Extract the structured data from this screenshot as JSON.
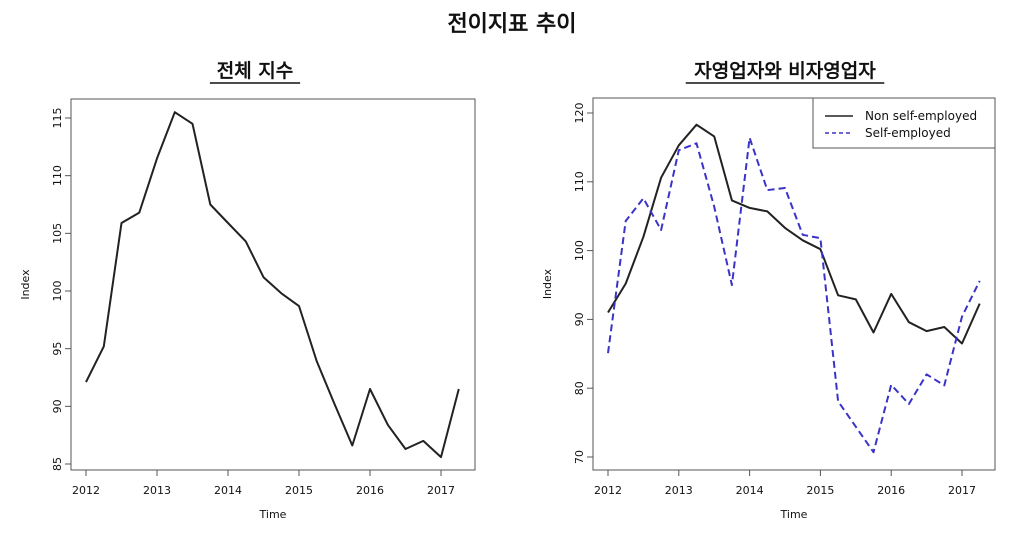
{
  "title": "전이지표 추이",
  "chart_data": [
    {
      "type": "line",
      "title": "전체 지수",
      "xlabel": "Time",
      "ylabel": "Index",
      "xlim": [
        2012,
        2017.25
      ],
      "ylim": [
        85,
        115
      ],
      "xticks": [
        2012,
        2013,
        2014,
        2015,
        2016,
        2017
      ],
      "yticks": [
        85,
        90,
        95,
        100,
        105,
        110,
        115
      ],
      "grid": false,
      "x": [
        2012,
        2012.25,
        2012.5,
        2012.75,
        2013,
        2013.25,
        2013.5,
        2013.75,
        2014,
        2014.25,
        2014.5,
        2014.75,
        2015,
        2015.25,
        2015.5,
        2015.75,
        2016,
        2016.25,
        2016.5,
        2016.75,
        2017,
        2017.25
      ],
      "series": [
        {
          "name": "Index",
          "color": "#222222",
          "dash": false,
          "values": [
            92.1,
            95.2,
            105.9,
            106.8,
            111.5,
            115.5,
            114.5,
            107.5,
            105.9,
            104.3,
            101.2,
            99.8,
            98.7,
            93.9,
            90.2,
            86.6,
            91.5,
            88.4,
            86.3,
            87.0,
            85.6,
            91.5
          ]
        }
      ]
    },
    {
      "type": "line",
      "title": "자영업자와 비자영업자",
      "xlabel": "Time",
      "ylabel": "Index",
      "xlim": [
        2012,
        2017.25
      ],
      "ylim": [
        70,
        120
      ],
      "xticks": [
        2012,
        2013,
        2014,
        2015,
        2016,
        2017
      ],
      "yticks": [
        70,
        80,
        90,
        100,
        110,
        120
      ],
      "grid": false,
      "legend": "top-right",
      "x": [
        2012,
        2012.25,
        2012.5,
        2012.75,
        2013,
        2013.25,
        2013.5,
        2013.75,
        2014,
        2014.25,
        2014.5,
        2014.75,
        2015,
        2015.25,
        2015.5,
        2015.75,
        2016,
        2016.25,
        2016.5,
        2016.75,
        2017,
        2017.25
      ],
      "series": [
        {
          "name": "Non self-employed",
          "color": "#222222",
          "dash": false,
          "values": [
            91.0,
            95.2,
            102.0,
            110.6,
            115.3,
            118.3,
            116.6,
            107.3,
            106.2,
            105.7,
            103.3,
            101.5,
            100.2,
            93.5,
            92.9,
            88.1,
            93.7,
            89.6,
            88.3,
            88.9,
            86.5,
            92.3
          ]
        },
        {
          "name": "Self-employed",
          "color": "#3a33c8",
          "dash": true,
          "values": [
            85.1,
            104.3,
            107.6,
            103.0,
            114.6,
            115.6,
            106.4,
            95.0,
            116.4,
            108.8,
            109.1,
            102.3,
            101.8,
            78.1,
            74.4,
            70.7,
            80.5,
            77.7,
            82.0,
            80.4,
            90.4,
            95.6
          ]
        }
      ]
    }
  ]
}
